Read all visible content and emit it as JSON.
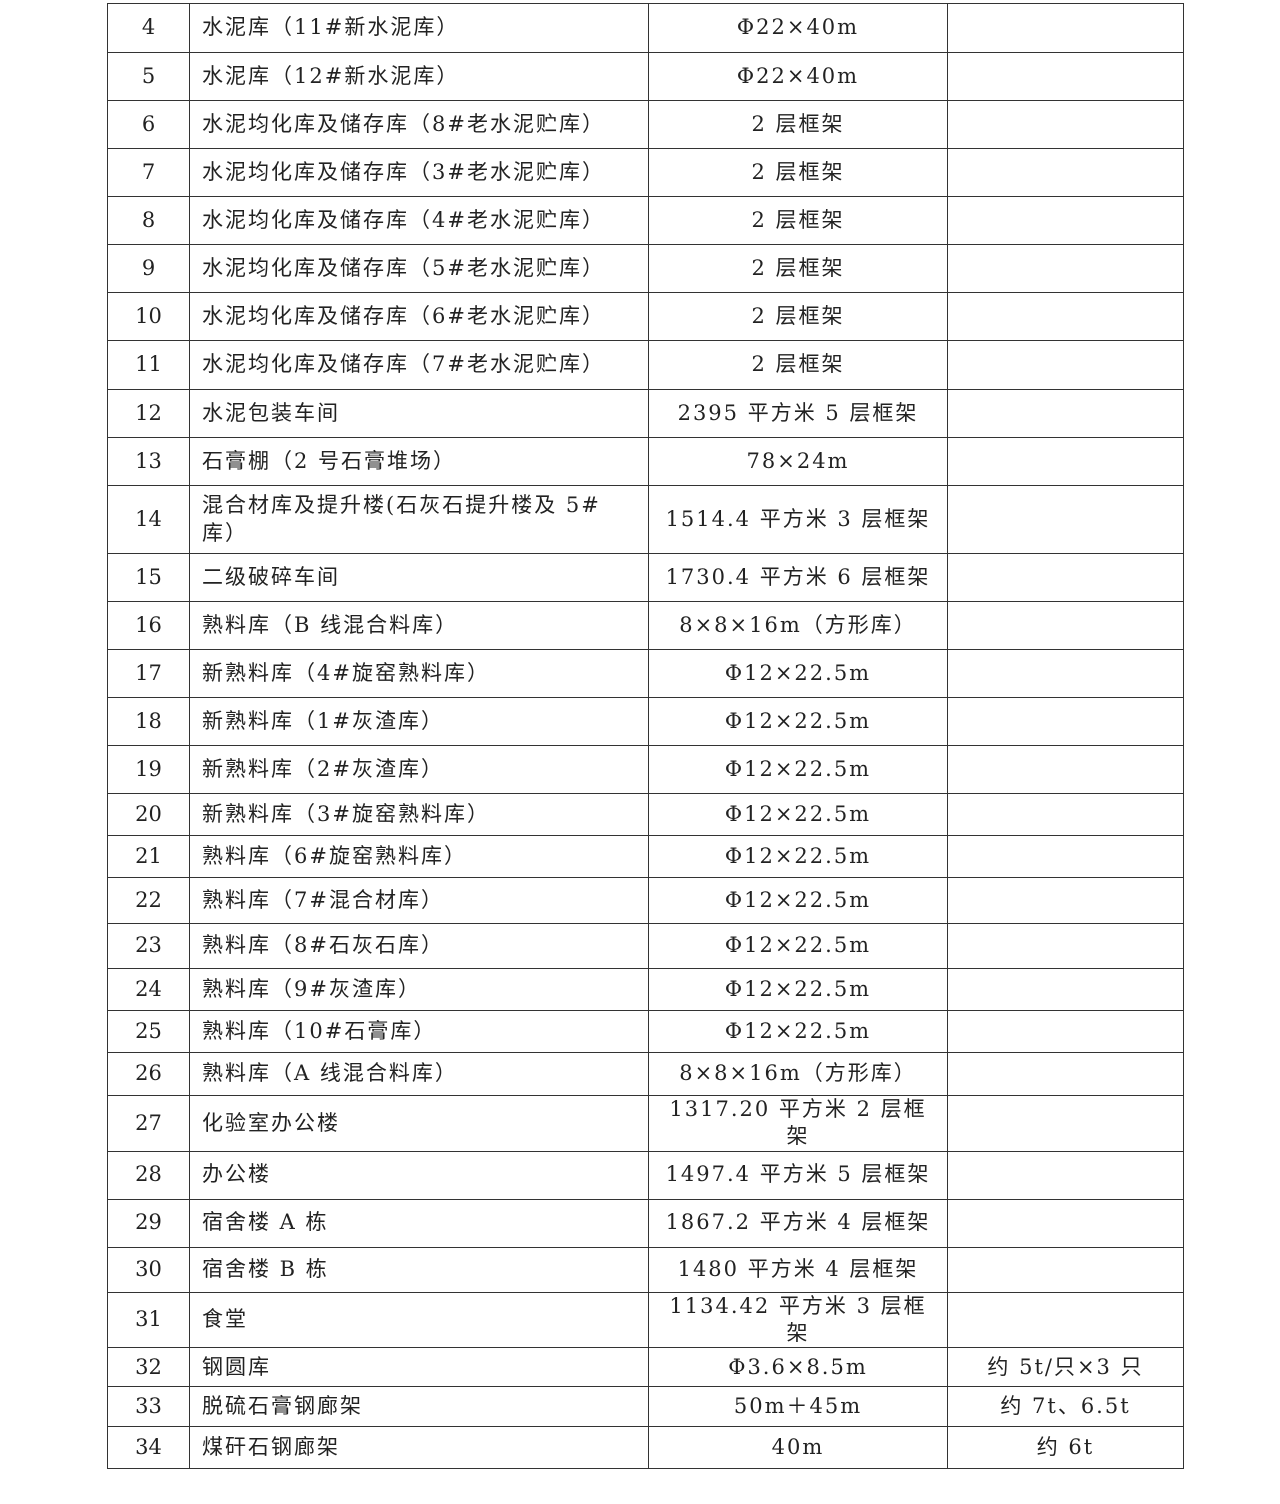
{
  "table": {
    "rows": [
      {
        "no": "4",
        "name": "水泥库（11#新水泥库）",
        "spec": "Φ22×40m",
        "weight": ""
      },
      {
        "no": "5",
        "name": "水泥库（12#新水泥库）",
        "spec": "Φ22×40m",
        "weight": ""
      },
      {
        "no": "6",
        "name": "水泥均化库及储存库（8#老水泥贮库）",
        "spec": "2 层框架",
        "weight": ""
      },
      {
        "no": "7",
        "name": "水泥均化库及储存库（3#老水泥贮库）",
        "spec": "2 层框架",
        "weight": ""
      },
      {
        "no": "8",
        "name": "水泥均化库及储存库（4#老水泥贮库）",
        "spec": "2 层框架",
        "weight": ""
      },
      {
        "no": "9",
        "name": "水泥均化库及储存库（5#老水泥贮库）",
        "spec": "2 层框架",
        "weight": ""
      },
      {
        "no": "10",
        "name": "水泥均化库及储存库（6#老水泥贮库）",
        "spec": "2 层框架",
        "weight": ""
      },
      {
        "no": "11",
        "name": "水泥均化库及储存库（7#老水泥贮库）",
        "spec": "2 层框架",
        "weight": ""
      },
      {
        "no": "12",
        "name": "水泥包装车间",
        "spec": "2395 平方米 5 层框架",
        "weight": ""
      },
      {
        "no": "13",
        "name": "石膏棚（2 号石膏堆场）",
        "spec": "78×24m",
        "weight": ""
      },
      {
        "no": "14",
        "name": "混合材库及提升楼(石灰石提升楼及 5#库）",
        "spec": "1514.4 平方米 3 层框架",
        "weight": ""
      },
      {
        "no": "15",
        "name": "二级破碎车间",
        "spec": "1730.4 平方米 6 层框架",
        "weight": ""
      },
      {
        "no": "16",
        "name": "熟料库（B 线混合料库）",
        "spec": "8×8×16m（方形库）",
        "weight": ""
      },
      {
        "no": "17",
        "name": "新熟料库（4#旋窑熟料库）",
        "spec": "Φ12×22.5m",
        "weight": ""
      },
      {
        "no": "18",
        "name": "新熟料库（1#灰渣库）",
        "spec": "Φ12×22.5m",
        "weight": ""
      },
      {
        "no": "19",
        "name": "新熟料库（2#灰渣库）",
        "spec": "Φ12×22.5m",
        "weight": ""
      },
      {
        "no": "20",
        "name": "新熟料库（3#旋窑熟料库）",
        "spec": "Φ12×22.5m",
        "weight": ""
      },
      {
        "no": "21",
        "name": "熟料库（6#旋窑熟料库）",
        "spec": "Φ12×22.5m",
        "weight": ""
      },
      {
        "no": "22",
        "name": "熟料库（7#混合材库）",
        "spec": "Φ12×22.5m",
        "weight": ""
      },
      {
        "no": "23",
        "name": "熟料库（8#石灰石库）",
        "spec": "Φ12×22.5m",
        "weight": ""
      },
      {
        "no": "24",
        "name": "熟料库（9#灰渣库）",
        "spec": "Φ12×22.5m",
        "weight": ""
      },
      {
        "no": "25",
        "name": "熟料库（10#石膏库）",
        "spec": "Φ12×22.5m",
        "weight": ""
      },
      {
        "no": "26",
        "name": "熟料库（A 线混合料库）",
        "spec": "8×8×16m（方形库）",
        "weight": ""
      },
      {
        "no": "27",
        "name": "化验室办公楼",
        "spec": "1317.20 平方米 2 层框架",
        "weight": ""
      },
      {
        "no": "28",
        "name": "办公楼",
        "spec": "1497.4 平方米 5 层框架",
        "weight": ""
      },
      {
        "no": "29",
        "name": "宿舍楼 A 栋",
        "spec": "1867.2 平方米 4 层框架",
        "weight": ""
      },
      {
        "no": "30",
        "name": "宿舍楼 B 栋",
        "spec": "1480 平方米 4 层框架",
        "weight": ""
      },
      {
        "no": "31",
        "name": "食堂",
        "spec": "1134.42 平方米 3 层框架",
        "weight": ""
      },
      {
        "no": "32",
        "name": "钢圆库",
        "spec": "Φ3.6×8.5m",
        "weight": "约 5t/只×3 只"
      },
      {
        "no": "33",
        "name": "脱硫石膏钢廊架",
        "spec": "50m＋45m",
        "weight": "约 7t、6.5t"
      },
      {
        "no": "34",
        "name": "煤矸石钢廊架",
        "spec": "40m",
        "weight": "约 6t"
      }
    ]
  }
}
